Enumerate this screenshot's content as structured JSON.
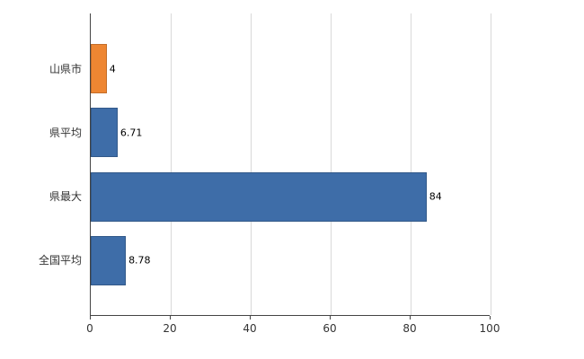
{
  "chart_data": {
    "type": "bar",
    "orientation": "horizontal",
    "title": "",
    "categories": [
      "山県市",
      "県平均",
      "県最大",
      "全国平均"
    ],
    "values": [
      4,
      6.71,
      84,
      8.78
    ],
    "value_labels": [
      "4",
      "6.71",
      "84",
      "8.78"
    ],
    "bar_colors": [
      "#EE8632",
      "#3E6DA8",
      "#3E6DA8",
      "#3E6DA8"
    ],
    "xlim": [
      0,
      100
    ],
    "x_ticks": [
      0,
      20,
      40,
      60,
      80,
      100
    ],
    "grid": true,
    "legend_position": "none"
  },
  "colors": {
    "background": "#ffffff",
    "grid": "#d9d9d9",
    "axis": "#444444",
    "text": "#333333",
    "value_text": "#000000"
  }
}
